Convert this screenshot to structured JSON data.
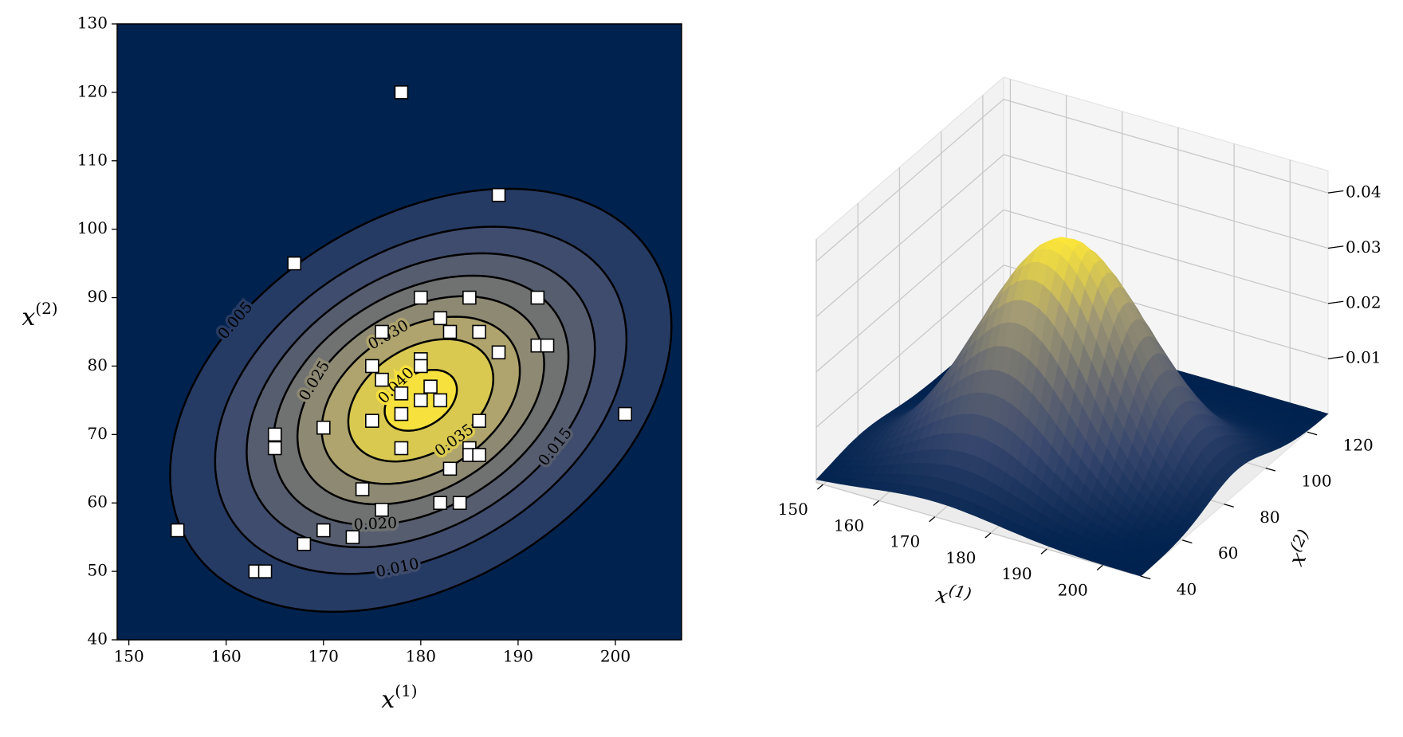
{
  "chart_data": [
    {
      "type": "contour",
      "xlim": [
        148.8,
        206.8
      ],
      "ylim": [
        40,
        130
      ],
      "xticks": [
        150,
        160,
        170,
        180,
        190,
        200
      ],
      "yticks": [
        40,
        50,
        60,
        70,
        80,
        90,
        100,
        110,
        120,
        130
      ],
      "xlabel": {
        "base": "x",
        "sup": "(1)"
      },
      "ylabel": {
        "base": "x",
        "sup": "(2)"
      },
      "cmap": "cividis",
      "levels": [
        {
          "value": 0.005,
          "label": "0.005"
        },
        {
          "value": 0.01,
          "label": "0.010"
        },
        {
          "value": 0.015,
          "label": "0.015"
        },
        {
          "value": 0.02,
          "label": "0.020"
        },
        {
          "value": 0.025,
          "label": "0.025"
        },
        {
          "value": 0.03,
          "label": "0.030"
        },
        {
          "value": 0.035,
          "label": "0.035"
        },
        {
          "value": 0.04,
          "label": "0.040"
        }
      ],
      "scatter": {
        "color": "#ffffff",
        "x": [
          178,
          188,
          167,
          180,
          185,
          192,
          182,
          176,
          183,
          186,
          192,
          193,
          188,
          180,
          180,
          175,
          176,
          181,
          178,
          180,
          182,
          178,
          175,
          186,
          170,
          165,
          165,
          178,
          185,
          185,
          186,
          183,
          174,
          182,
          184,
          176,
          170,
          173,
          168,
          155,
          163,
          164,
          201
        ],
        "y": [
          120,
          105,
          95,
          90,
          90,
          90,
          87,
          85,
          85,
          85,
          83,
          83,
          82,
          81,
          80,
          80,
          78,
          77,
          76,
          75,
          75,
          73,
          72,
          72,
          71,
          70,
          68,
          68,
          68,
          67,
          67,
          65,
          62,
          60,
          60,
          59,
          56,
          55,
          54,
          56,
          50,
          50,
          73
        ]
      }
    },
    {
      "type": "surface",
      "xlim": [
        148.8,
        206.8
      ],
      "ylim": [
        40,
        130
      ],
      "zlim": [
        0,
        0.044
      ],
      "xticks": [
        150,
        160,
        170,
        180,
        190,
        200
      ],
      "yticks": [
        40,
        60,
        80,
        100,
        120
      ],
      "zticks": [
        0.01,
        0.02,
        0.03,
        0.04
      ],
      "xlabel": {
        "base": "x",
        "sup": "(1)"
      },
      "ylabel": {
        "base": "x",
        "sup": "(2)"
      },
      "cmap": "cividis"
    }
  ]
}
